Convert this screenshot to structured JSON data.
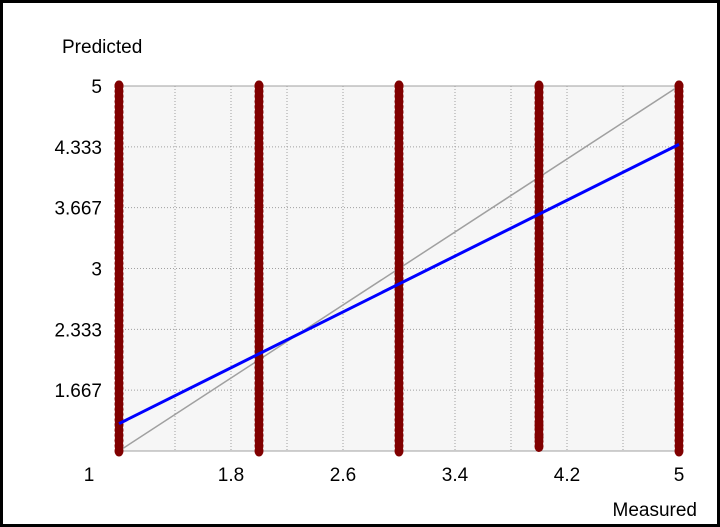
{
  "chart_data": {
    "type": "scatter",
    "title": "",
    "xlabel": "Measured",
    "ylabel": "Predicted",
    "xlim": [
      1,
      5
    ],
    "ylim": [
      1,
      5
    ],
    "x_ticks": [
      "1",
      "1.8",
      "2.6",
      "3.4",
      "4.2",
      "5"
    ],
    "y_ticks": [
      "5",
      "4.333",
      "3.667",
      "3",
      "2.333",
      "1.667"
    ],
    "grid": true,
    "colors": {
      "points": "#800000",
      "fit_line": "#0000ff",
      "identity_line": "#a0a0a0",
      "plot_background": "#f6f6f6",
      "grid": "#a0a0a0"
    },
    "series": [
      {
        "x": 1,
        "y_ranges": [
          [
            1,
            5
          ]
        ]
      },
      {
        "x": 2,
        "y_ranges": [
          [
            1,
            5
          ]
        ]
      },
      {
        "x": 3,
        "y_ranges": [
          [
            1,
            5
          ]
        ]
      },
      {
        "x": 4,
        "y_ranges": [
          [
            1.05,
            1.15
          ],
          [
            1.18,
            1.28
          ],
          [
            1.32,
            1.42
          ],
          [
            1.48,
            1.85
          ],
          [
            1.9,
            5
          ]
        ]
      },
      {
        "x": 5,
        "y_ranges": [
          [
            1,
            5
          ]
        ]
      }
    ],
    "fit_line": {
      "x": [
        1,
        5
      ],
      "y": [
        1.3,
        4.36
      ]
    },
    "identity_line": {
      "x": [
        1,
        5
      ],
      "y": [
        1,
        5
      ]
    }
  }
}
